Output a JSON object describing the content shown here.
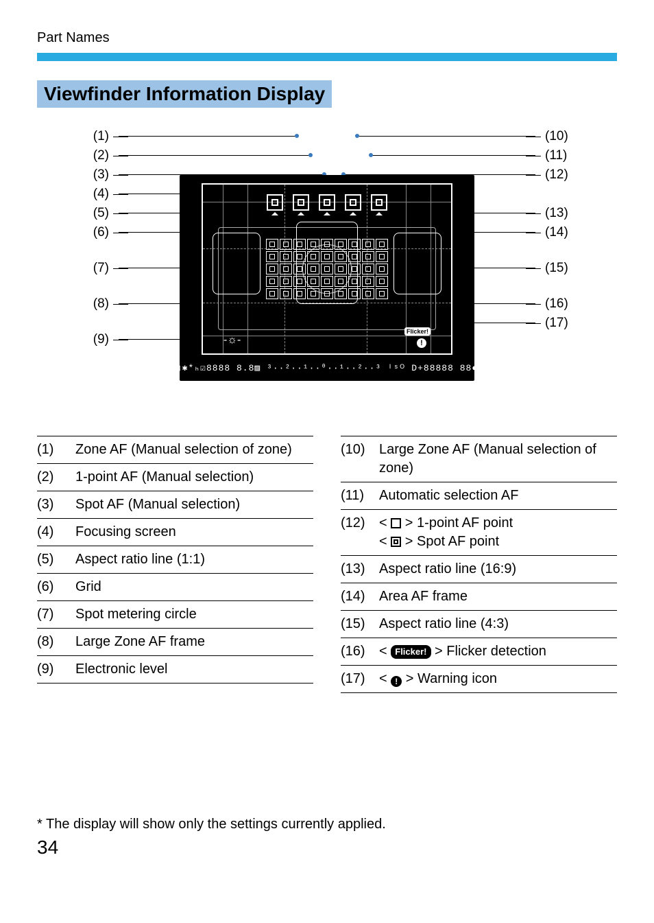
{
  "breadcrumb": "Part Names",
  "section_title": "Viewfinder Information Display",
  "colors": {
    "accent_bar": "#29abe2",
    "title_bg": "#9cc3e6",
    "leader_dot": "#3a7bbf"
  },
  "callouts_left": [
    "(1)",
    "(2)",
    "(3)",
    "(4)",
    "(5)",
    "(6)",
    "(7)",
    "(8)",
    "(9)"
  ],
  "callouts_right": [
    "(10)",
    "(11)",
    "(12)",
    "(13)",
    "(14)",
    "(15)",
    "(16)",
    "(17)"
  ],
  "bottom_strip_text": "▯✱*ₕ☑8888 8.8▨ ³··²··¹··⁰··¹··²··³ ᴵˢᴼ D+88888 88●",
  "flicker_label": "Flicker!",
  "warn_glyph": "!",
  "legend_left": [
    {
      "num": "(1)",
      "text": "Zone AF (Manual selection of zone)"
    },
    {
      "num": "(2)",
      "text": "1-point AF (Manual selection)"
    },
    {
      "num": "(3)",
      "text": "Spot AF (Manual selection)"
    },
    {
      "num": "(4)",
      "text": "Focusing screen"
    },
    {
      "num": "(5)",
      "text": "Aspect ratio line (1:1)"
    },
    {
      "num": "(6)",
      "text": "Grid"
    },
    {
      "num": "(7)",
      "text": "Spot metering circle"
    },
    {
      "num": "(8)",
      "text": "Large Zone AF frame"
    },
    {
      "num": "(9)",
      "text": "Electronic level"
    }
  ],
  "legend_right": [
    {
      "num": "(10)",
      "text": "Large Zone AF (Manual selection of zone)"
    },
    {
      "num": "(11)",
      "text": "Automatic selection AF"
    },
    {
      "num": "(12)",
      "html": "< <span class='sym-box'></span> > 1-point AF point<br>< <span class='sym-box-inner'></span> > Spot AF point"
    },
    {
      "num": "(13)",
      "text": "Aspect ratio line (16:9)"
    },
    {
      "num": "(14)",
      "text": "Area AF frame"
    },
    {
      "num": "(15)",
      "text": "Aspect ratio line (4:3)"
    },
    {
      "num": "(16)",
      "html": "< <span class='sym-flicker'>Flicker!</span> > Flicker detection"
    },
    {
      "num": "(17)",
      "html": "< <span class='sym-warn'>!</span> > Warning icon"
    }
  ],
  "footnote": "*  The display will show only the settings currently applied.",
  "page_number": "34"
}
